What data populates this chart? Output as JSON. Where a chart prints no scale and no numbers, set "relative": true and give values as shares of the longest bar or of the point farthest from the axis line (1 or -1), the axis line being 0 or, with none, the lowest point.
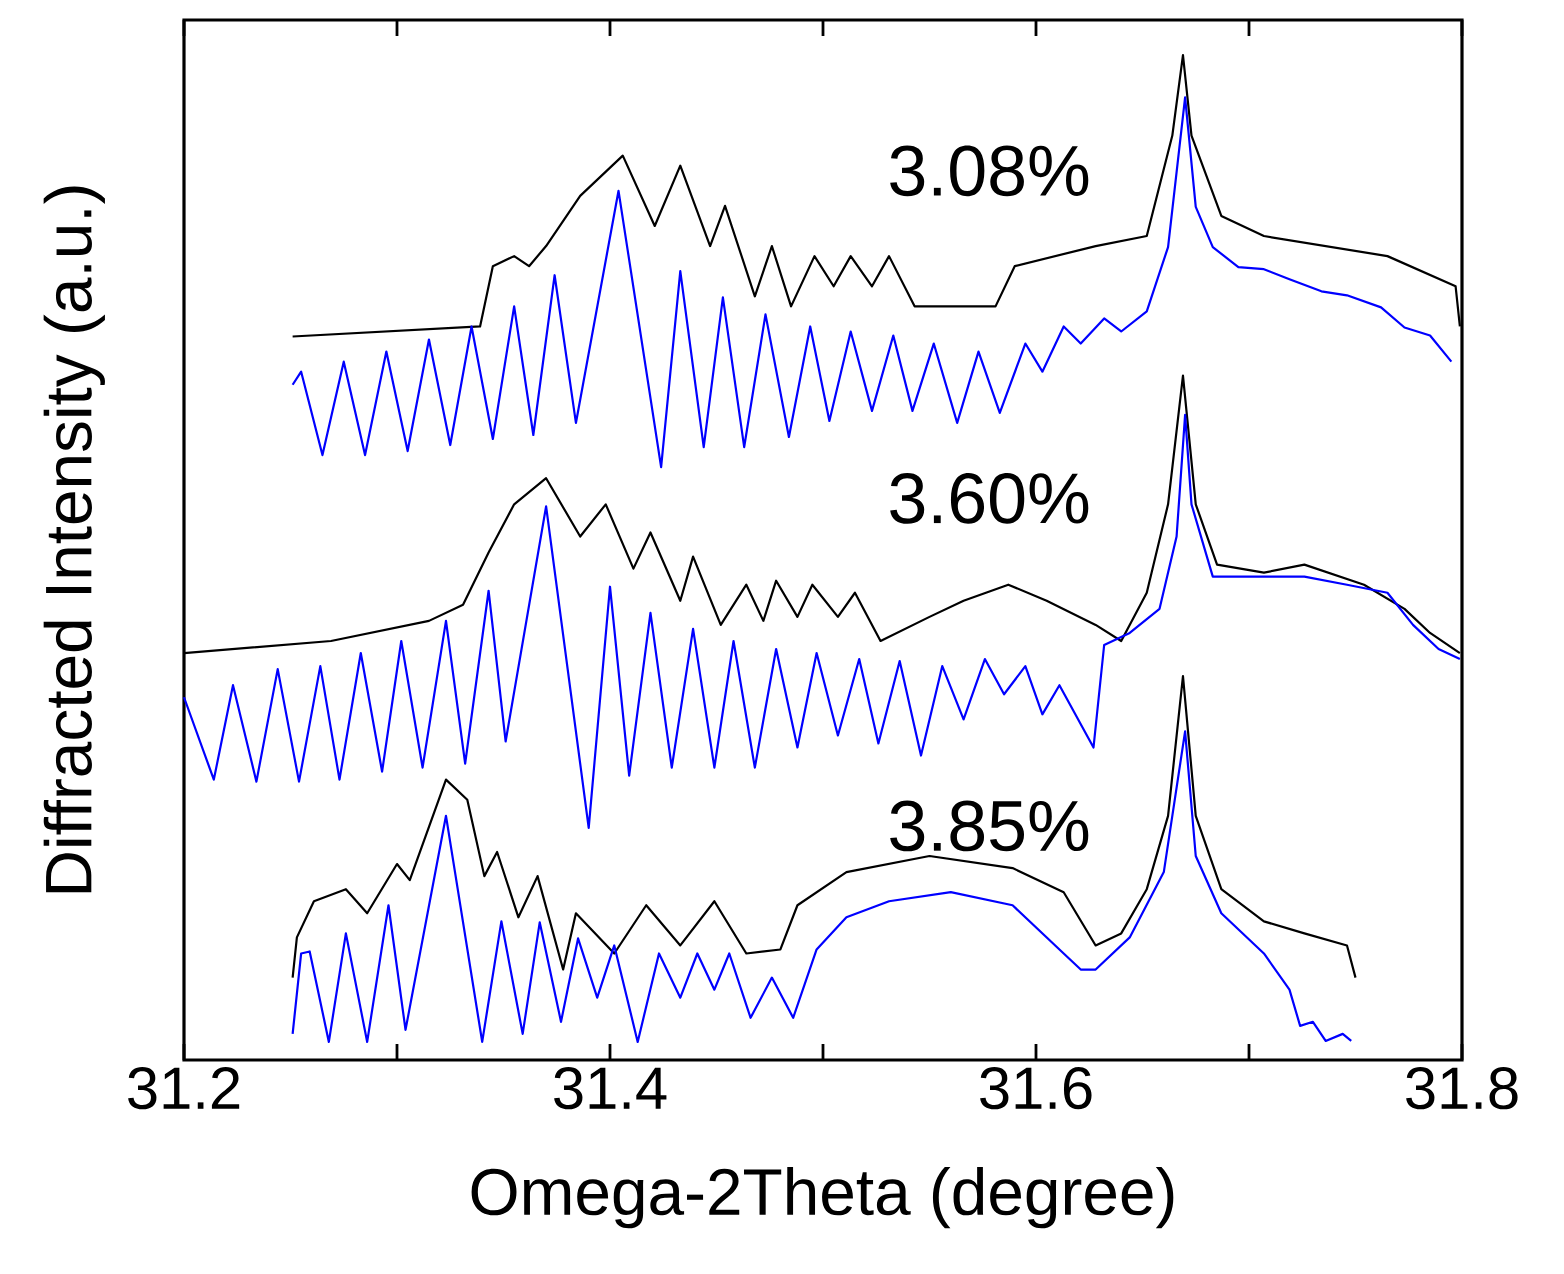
{
  "chart_data": {
    "type": "line",
    "relative": true,
    "xlabel": "Omega-2Theta (degree)",
    "ylabel": "Diffracted Intensity (a.u.)",
    "xlim": [
      31.2,
      31.8
    ],
    "xticks": [
      31.2,
      {
        "value": 31.3,
        "label": null
      },
      31.4,
      {
        "value": 31.5,
        "label": null
      },
      31.6,
      {
        "value": 31.7,
        "label": null
      },
      31.8
    ],
    "annotations": [
      "3.08%",
      "3.60%",
      "3.85%"
    ],
    "series": [
      {
        "color": "#000000",
        "x": [
          31.251,
          31.339,
          31.345,
          31.355,
          31.362,
          31.37,
          31.386,
          31.406,
          31.421,
          31.433,
          31.447,
          31.454,
          31.468,
          31.476,
          31.485,
          31.496,
          31.505,
          31.513,
          31.523,
          31.531,
          31.543,
          31.554,
          31.581,
          31.59,
          31.628,
          31.652,
          31.664,
          31.669,
          31.673,
          31.687,
          31.707,
          31.765,
          31.797,
          31.799
        ],
        "values": [
          0.72,
          0.73,
          0.79,
          0.8,
          0.79,
          0.81,
          0.86,
          0.9,
          0.83,
          0.89,
          0.81,
          0.85,
          0.76,
          0.81,
          0.75,
          0.8,
          0.77,
          0.8,
          0.77,
          0.8,
          0.75,
          0.75,
          0.75,
          0.79,
          0.81,
          0.82,
          0.92,
          1.0,
          0.92,
          0.84,
          0.82,
          0.8,
          0.77,
          0.73
        ]
      },
      {
        "color": "#0000ff",
        "x": [
          31.251,
          31.255,
          31.265,
          31.275,
          31.285,
          31.295,
          31.305,
          31.315,
          31.325,
          31.335,
          31.345,
          31.355,
          31.364,
          31.374,
          31.384,
          31.404,
          31.424,
          31.433,
          31.444,
          31.453,
          31.463,
          31.473,
          31.484,
          31.494,
          31.503,
          31.513,
          31.523,
          31.533,
          31.542,
          31.552,
          31.563,
          31.573,
          31.583,
          31.595,
          31.603,
          31.613,
          31.621,
          31.632,
          31.64,
          31.652,
          31.662,
          31.67,
          31.675,
          31.683,
          31.695,
          31.707,
          31.719,
          31.734,
          31.746,
          31.762,
          31.773,
          31.785,
          31.795
        ],
        "values": [
          0.672,
          0.685,
          0.602,
          0.695,
          0.602,
          0.705,
          0.606,
          0.717,
          0.612,
          0.73,
          0.618,
          0.75,
          0.622,
          0.781,
          0.634,
          0.865,
          0.59,
          0.785,
          0.61,
          0.759,
          0.61,
          0.742,
          0.62,
          0.73,
          0.636,
          0.725,
          0.646,
          0.721,
          0.646,
          0.713,
          0.634,
          0.705,
          0.644,
          0.713,
          0.685,
          0.73,
          0.713,
          0.738,
          0.725,
          0.745,
          0.809,
          0.958,
          0.849,
          0.809,
          0.789,
          0.787,
          0.777,
          0.765,
          0.761,
          0.749,
          0.729,
          0.721,
          0.695
        ]
      },
      {
        "color": "#000000",
        "x": [
          31.2,
          31.269,
          31.315,
          31.331,
          31.343,
          31.355,
          31.37,
          31.386,
          31.398,
          31.411,
          31.419,
          31.433,
          31.439,
          31.452,
          31.464,
          31.472,
          31.478,
          31.488,
          31.495,
          31.507,
          31.515,
          31.527,
          31.55,
          31.566,
          31.587,
          31.605,
          31.628,
          31.64,
          31.652,
          31.662,
          31.669,
          31.675,
          31.685,
          31.707,
          31.726,
          31.754,
          31.773,
          31.785,
          31.799
        ],
        "values": [
          0.405,
          0.417,
          0.437,
          0.453,
          0.505,
          0.553,
          0.579,
          0.521,
          0.553,
          0.489,
          0.525,
          0.457,
          0.501,
          0.433,
          0.473,
          0.437,
          0.477,
          0.441,
          0.473,
          0.441,
          0.465,
          0.417,
          0.441,
          0.457,
          0.473,
          0.457,
          0.433,
          0.417,
          0.465,
          0.553,
          0.681,
          0.553,
          0.493,
          0.485,
          0.493,
          0.473,
          0.449,
          0.425,
          0.405
        ]
      },
      {
        "color": "#0000ff",
        "x": [
          31.2,
          31.214,
          31.223,
          31.234,
          31.244,
          31.254,
          31.264,
          31.273,
          31.283,
          31.293,
          31.302,
          31.312,
          31.323,
          31.332,
          31.343,
          31.351,
          31.37,
          31.39,
          31.4,
          31.409,
          31.419,
          31.429,
          31.439,
          31.449,
          31.458,
          31.468,
          31.478,
          31.488,
          31.497,
          31.507,
          31.517,
          31.526,
          31.536,
          31.546,
          31.556,
          31.566,
          31.576,
          31.585,
          31.595,
          31.603,
          31.611,
          31.627,
          31.632,
          31.644,
          31.658,
          31.666,
          31.67,
          31.673,
          31.683,
          31.707,
          31.726,
          31.746,
          31.765,
          31.777,
          31.789,
          31.799
        ],
        "values": [
          0.361,
          0.279,
          0.373,
          0.277,
          0.389,
          0.277,
          0.392,
          0.279,
          0.405,
          0.287,
          0.417,
          0.291,
          0.437,
          0.295,
          0.467,
          0.317,
          0.551,
          0.231,
          0.471,
          0.283,
          0.445,
          0.291,
          0.429,
          0.291,
          0.417,
          0.291,
          0.409,
          0.311,
          0.405,
          0.323,
          0.399,
          0.315,
          0.397,
          0.303,
          0.392,
          0.339,
          0.399,
          0.364,
          0.392,
          0.344,
          0.373,
          0.311,
          0.413,
          0.425,
          0.449,
          0.521,
          0.642,
          0.553,
          0.481,
          0.481,
          0.481,
          0.473,
          0.465,
          0.433,
          0.409,
          0.399
        ]
      },
      {
        "color": "#000000",
        "x": [
          31.251,
          31.253,
          31.261,
          31.276,
          31.286,
          31.3,
          31.306,
          31.323,
          31.333,
          31.341,
          31.347,
          31.357,
          31.366,
          31.378,
          31.384,
          31.402,
          31.417,
          31.433,
          31.449,
          31.464,
          31.48,
          31.488,
          31.511,
          31.55,
          31.589,
          31.613,
          31.628,
          31.64,
          31.652,
          31.662,
          31.669,
          31.675,
          31.687,
          31.707,
          31.726,
          31.746,
          31.75
        ],
        "values": [
          0.082,
          0.122,
          0.158,
          0.17,
          0.146,
          0.195,
          0.179,
          0.279,
          0.259,
          0.183,
          0.207,
          0.142,
          0.183,
          0.09,
          0.146,
          0.106,
          0.154,
          0.114,
          0.158,
          0.106,
          0.11,
          0.154,
          0.187,
          0.203,
          0.191,
          0.167,
          0.114,
          0.126,
          0.17,
          0.243,
          0.382,
          0.243,
          0.17,
          0.138,
          0.126,
          0.114,
          0.082
        ]
      },
      {
        "color": "#0000ff",
        "x": [
          31.251,
          31.255,
          31.259,
          31.268,
          31.276,
          31.286,
          31.296,
          31.304,
          31.323,
          31.34,
          31.349,
          31.359,
          31.367,
          31.377,
          31.385,
          31.394,
          31.402,
          31.413,
          31.423,
          31.433,
          31.441,
          31.449,
          31.456,
          31.466,
          31.476,
          31.486,
          31.497,
          31.511,
          31.531,
          31.56,
          31.589,
          31.613,
          31.621,
          31.628,
          31.644,
          31.66,
          31.67,
          31.675,
          31.687,
          31.707,
          31.719,
          31.724,
          31.73,
          31.736,
          31.744,
          31.748
        ],
        "values": [
          0.026,
          0.106,
          0.108,
          0.018,
          0.126,
          0.018,
          0.154,
          0.03,
          0.243,
          0.018,
          0.138,
          0.026,
          0.137,
          0.038,
          0.121,
          0.062,
          0.114,
          0.018,
          0.106,
          0.062,
          0.106,
          0.07,
          0.106,
          0.042,
          0.082,
          0.042,
          0.11,
          0.142,
          0.158,
          0.167,
          0.154,
          0.106,
          0.09,
          0.09,
          0.122,
          0.187,
          0.327,
          0.203,
          0.146,
          0.106,
          0.07,
          0.034,
          0.038,
          0.019,
          0.026,
          0.019
        ]
      }
    ]
  }
}
